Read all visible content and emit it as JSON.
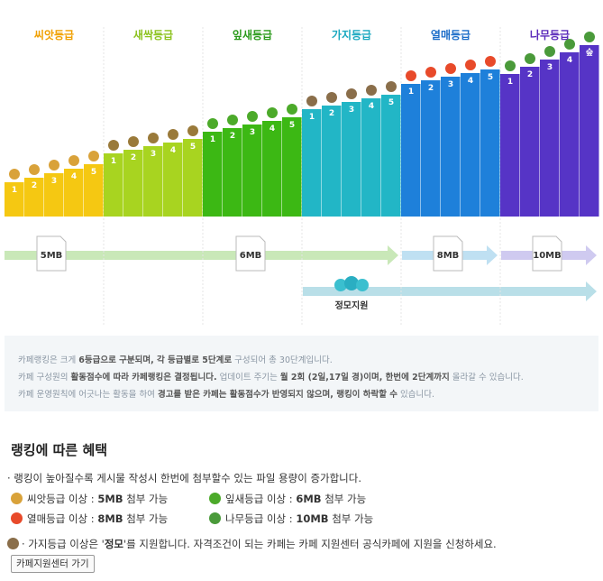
{
  "grades": [
    {
      "name": "씨앗등급",
      "steps": [
        "1",
        "2",
        "3",
        "4",
        "5"
      ]
    },
    {
      "name": "새싹등급",
      "steps": [
        "1",
        "2",
        "3",
        "4",
        "5"
      ]
    },
    {
      "name": "잎새등급",
      "steps": [
        "1",
        "2",
        "3",
        "4",
        "5"
      ]
    },
    {
      "name": "가지등급",
      "steps": [
        "1",
        "2",
        "3",
        "4",
        "5"
      ]
    },
    {
      "name": "열매등급",
      "steps": [
        "1",
        "2",
        "3",
        "4",
        "5"
      ]
    },
    {
      "name": "나무등급",
      "steps": [
        "1",
        "2",
        "3",
        "4",
        "숲"
      ]
    }
  ],
  "timeline": {
    "files": [
      "5MB",
      "6MB",
      "8MB",
      "10MB"
    ],
    "meeting": "정모지원"
  },
  "info": [
    [
      "카페랭킹은 크게 ",
      "6등급으로 구분되며, 각 등급별로 5단계로",
      " 구성되어 총 30단계입니다."
    ],
    [
      "카페 구성원의 ",
      "활동점수에 따라 카페랭킹은 결정됩니다.",
      " 업데이트 주기는 ",
      "월 2회 (2일,17일 경)이며, 한번에 2단계까지",
      " 올라갈 수 있습니다."
    ],
    [
      "카페 운영원칙에 어긋나는 활동을 하여 ",
      "경고를 받은 카페는 활동점수가 반영되지 않으며, 랭킹이 하락할 수",
      " 있습니다."
    ]
  ],
  "benefits": {
    "title": "랭킹에 따른 혜택",
    "intro": "· 랭킹이 높아질수록 게시물 작성시 한번에 첨부할수 있는 파일 용량이 증가합니다.",
    "items": [
      [
        "씨앗등급 이상 : ",
        "5MB",
        " 첨부 가능"
      ],
      [
        "잎새등급 이상 : ",
        "6MB",
        " 첨부 가능"
      ],
      [
        "열매등급 이상 : ",
        "8MB",
        " 첨부 가능"
      ],
      [
        "나무등급 이상 : ",
        "10MB",
        " 첨부 가능"
      ]
    ],
    "meeting": [
      "· 가지등급 이상은 '",
      "정모",
      "'를 지원합니다. 자격조건이 되는 카페는 카페 지원센터 공식카페에 지원을 신청하세요."
    ],
    "button": "카페지원센터 가기"
  }
}
